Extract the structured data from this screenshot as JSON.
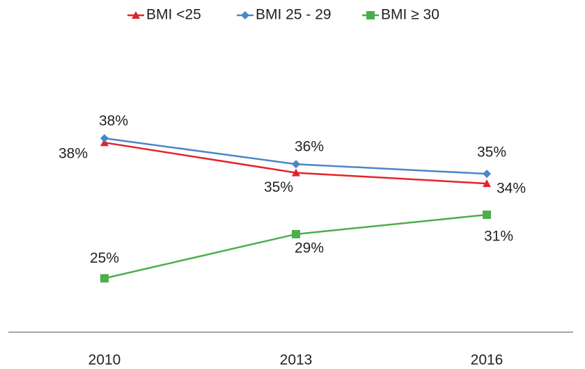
{
  "chart_data": {
    "type": "line",
    "categories": [
      "2010",
      "2013",
      "2016"
    ],
    "series": [
      {
        "name": "BMI <25",
        "color": "#e3232b",
        "marker": "triangle",
        "values": [
          37.6,
          34.8,
          33.8
        ],
        "value_labels": [
          "38%",
          "35%",
          "34%"
        ]
      },
      {
        "name": "BMI 25 - 29",
        "color": "#4a86c8",
        "marker": "diamond",
        "values": [
          38.0,
          35.6,
          34.7
        ],
        "value_labels": [
          "38%",
          "36%",
          "35%"
        ]
      },
      {
        "name": "BMI ≥ 30",
        "color": "#4cae4c",
        "marker": "square",
        "values": [
          25.0,
          29.1,
          30.9
        ],
        "value_labels": [
          "25%",
          "29%",
          "31%"
        ]
      }
    ],
    "ylim": [
      20,
      45
    ],
    "legend": "top"
  }
}
